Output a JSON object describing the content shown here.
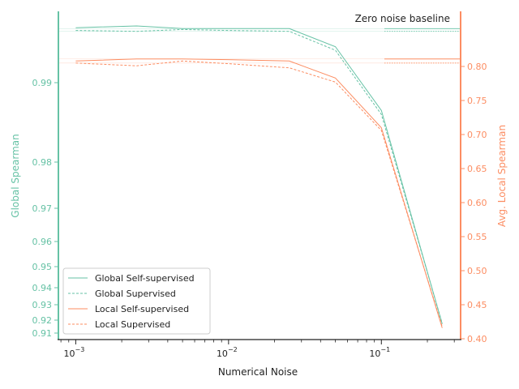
{
  "chart_data": {
    "type": "line",
    "xlabel": "Numerical Noise",
    "ylabel_left": "Global Spearman",
    "ylabel_right": "Avg. Local Spearman",
    "x_scale": "log",
    "x_ticks": [
      {
        "base": "10",
        "exp": "−3"
      },
      {
        "base": "10",
        "exp": "−2"
      },
      {
        "base": "10",
        "exp": "−1"
      }
    ],
    "y_left_ticks": [
      "0.91",
      "0.92",
      "0.93",
      "0.94",
      "0.95",
      "0.96",
      "0.97",
      "0.98",
      "0.99"
    ],
    "y_right_ticks": [
      "0.40",
      "0.45",
      "0.50",
      "0.55",
      "0.60",
      "0.65",
      "0.70",
      "0.75",
      "0.80"
    ],
    "annotation": "Zero noise baseline",
    "x": [
      0.001,
      0.0025,
      0.005,
      0.01,
      0.025,
      0.05,
      0.1,
      0.25
    ],
    "series": [
      {
        "name": "Global Self-supervised",
        "axis": "left",
        "style": "solid",
        "color": "#66c2a5",
        "values": [
          0.9961,
          0.9963,
          0.996,
          0.996,
          0.996,
          0.994,
          0.9865,
          0.917
        ],
        "baseline": 0.996
      },
      {
        "name": "Global Supervised",
        "axis": "left",
        "style": "dashed",
        "color": "#66c2a5",
        "values": [
          0.9958,
          0.9957,
          0.9959,
          0.9958,
          0.9957,
          0.9936,
          0.986,
          0.9175
        ],
        "baseline": 0.9957
      },
      {
        "name": "Local Self-supervised",
        "axis": "right",
        "style": "solid",
        "color": "#fc8d62",
        "values": [
          0.808,
          0.811,
          0.811,
          0.81,
          0.808,
          0.783,
          0.71,
          0.416
        ],
        "baseline": 0.811
      },
      {
        "name": "Local Supervised",
        "axis": "right",
        "style": "dashed",
        "color": "#fc8d62",
        "values": [
          0.805,
          0.801,
          0.808,
          0.804,
          0.798,
          0.777,
          0.706,
          0.418
        ],
        "baseline": 0.805
      }
    ],
    "legend_position": "lower-left"
  },
  "colors": {
    "left_axis": "#66c2a5",
    "right_axis": "#fc8d62",
    "frame": "#222222"
  }
}
